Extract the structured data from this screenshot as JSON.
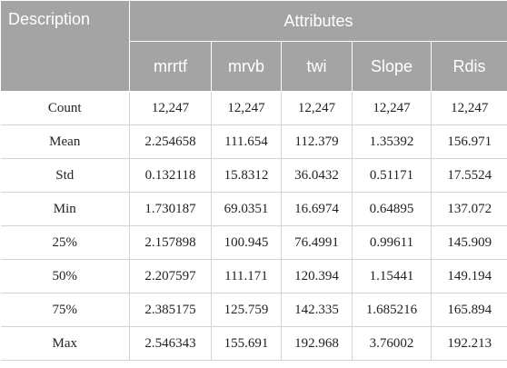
{
  "table": {
    "description_header": "Description",
    "group_header": "Attributes",
    "columns": [
      "mrrtf",
      "mrvb",
      "twi",
      "Slope",
      "Rdis"
    ],
    "rows": [
      {
        "label": "Count",
        "values": [
          "12,247",
          "12,247",
          "12,247",
          "12,247",
          "12,247"
        ]
      },
      {
        "label": "Mean",
        "values": [
          "2.254658",
          "111.654",
          "112.379",
          "1.35392",
          "156.971"
        ]
      },
      {
        "label": "Std",
        "values": [
          "0.132118",
          "15.8312",
          "36.0432",
          "0.51171",
          "17.5524"
        ]
      },
      {
        "label": "Min",
        "values": [
          "1.730187",
          "69.0351",
          "16.6974",
          "0.64895",
          "137.072"
        ]
      },
      {
        "label": "25%",
        "values": [
          "2.157898",
          "100.945",
          "76.4991",
          "0.99611",
          "145.909"
        ]
      },
      {
        "label": "50%",
        "values": [
          "2.207597",
          "111.171",
          "120.394",
          "1.15441",
          "149.194"
        ]
      },
      {
        "label": "75%",
        "values": [
          "2.385175",
          "125.759",
          "142.335",
          "1.685216",
          "165.894"
        ]
      },
      {
        "label": "Max",
        "values": [
          "2.546343",
          "155.691",
          "192.968",
          "3.76002",
          "192.213"
        ]
      }
    ]
  }
}
